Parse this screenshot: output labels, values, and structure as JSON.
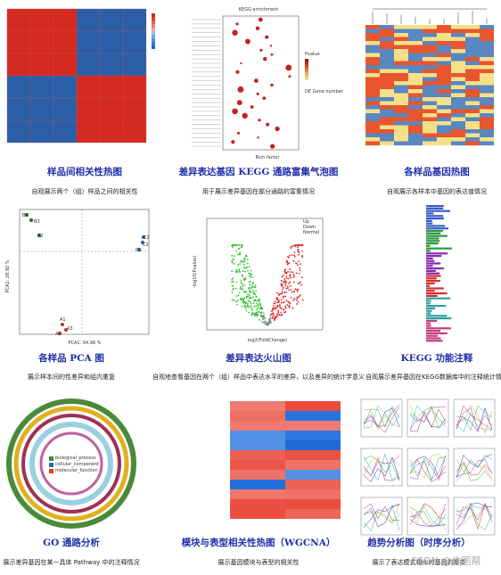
{
  "panels": [
    {
      "title": "样品间相关性热图",
      "description": "自观展示两个（组）样品之间的相关性"
    },
    {
      "title": "差异表达基因 KEGG 通路富集气泡图",
      "description": "用于展示差异基因在部分通路的富集情况",
      "labels": [
        "KEGG enrichment",
        "Rich factor",
        "Pvalue",
        "DE Gene number"
      ]
    },
    {
      "title": "各样品基因热图",
      "description": "自观展示各样本中基因的表达值情况"
    },
    {
      "title": "各样品 PCA 图",
      "description": "展示样本间的性差异和组内重复",
      "labels": [
        "PCA1: 64.96 %",
        "PCA2: 28.92 %",
        "B1",
        "B2",
        "B3",
        "C1",
        "C2",
        "C3",
        "A1",
        "A2",
        "A3"
      ]
    },
    {
      "title": "差异表达火山图",
      "description": "自观地查看基因在两个（组）样品中表达水平的差异，以及差异的统计学意义",
      "labels": [
        "log2(FoldChange)",
        "-log10(Pvalue)",
        "Up",
        "Down",
        "Normal"
      ]
    },
    {
      "title": "KEGG 功能注释",
      "description": "自观展示差异基因在KEGG数据库中的注释统计情况"
    },
    {
      "title": "GO 通路分析",
      "description": "展示差异基因在某一具体 Pathway 中的注释情况",
      "labels": [
        "biological_process",
        "cellular_component",
        "molecular_function"
      ]
    },
    {
      "title": "模块与表型相关性热图（WGCNA）",
      "description": "展示基因模块与表型的相关性"
    },
    {
      "title": "趋势分析图（时序分析）",
      "description": "展示了表达模式相似的基因的聚类"
    }
  ],
  "watermark": "CSDN @作图帮"
}
